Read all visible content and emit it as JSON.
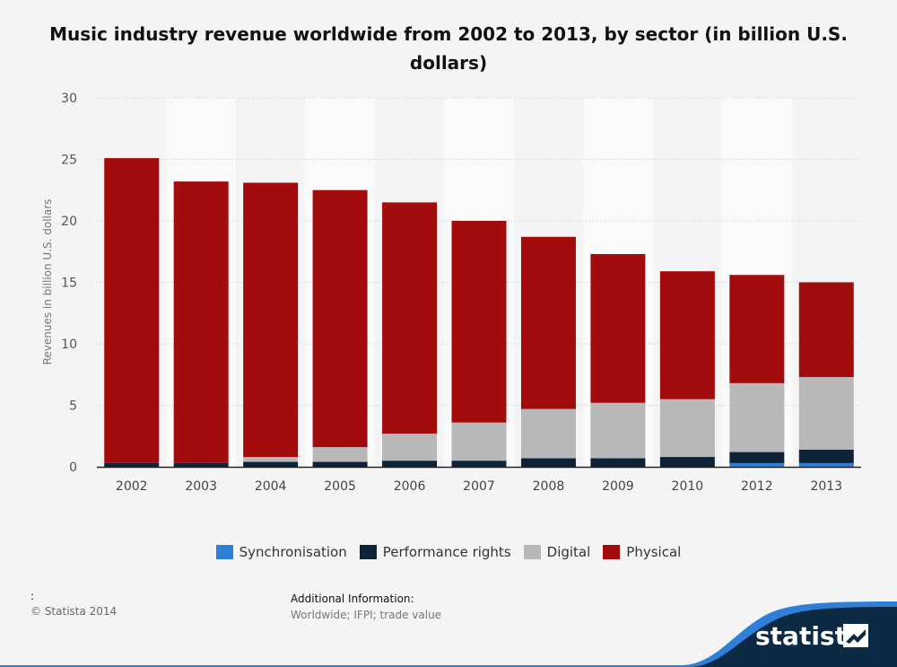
{
  "chart_data": {
    "type": "bar",
    "stacked": true,
    "title": "Music industry revenue worldwide from 2002 to 2013, by sector (in billion U.S. dollars)",
    "ylabel": "Revenues in billion U.S. dollars",
    "xlabel": "",
    "ylim": [
      0,
      30
    ],
    "yticks": [
      0,
      5,
      10,
      15,
      20,
      25,
      30
    ],
    "categories": [
      "2002",
      "2003",
      "2004",
      "2005",
      "2006",
      "2007",
      "2008",
      "2009",
      "2010",
      "2012",
      "2013"
    ],
    "series": [
      {
        "name": "Synchronisation",
        "color": "#2f7ed8",
        "values": [
          0,
          0,
          0,
          0,
          0,
          0,
          0,
          0,
          0,
          0.3,
          0.3
        ]
      },
      {
        "name": "Performance rights",
        "color": "#0d233a",
        "values": [
          0.3,
          0.3,
          0.4,
          0.4,
          0.5,
          0.5,
          0.7,
          0.7,
          0.8,
          0.9,
          1.1
        ]
      },
      {
        "name": "Digital",
        "color": "#b8b8b8",
        "values": [
          0,
          0,
          0.4,
          1.2,
          2.2,
          3.1,
          4.0,
          4.5,
          4.7,
          5.6,
          5.9
        ]
      },
      {
        "name": "Physical",
        "color": "#a20c0c",
        "values": [
          24.8,
          22.9,
          22.3,
          20.9,
          18.8,
          16.4,
          14.0,
          12.1,
          10.4,
          8.8,
          7.7
        ]
      }
    ],
    "grid": true,
    "legend_position": "bottom"
  },
  "footer": {
    "left_colon": ":",
    "copyright": "© Statista 2014",
    "additional_heading": "Additional Information:",
    "additional_text": "Worldwide; IFPI; trade value"
  },
  "brand": {
    "name": "statista"
  },
  "colors": {
    "band_dark": "#0d2a45",
    "band_blue": "#2f7ed8"
  }
}
